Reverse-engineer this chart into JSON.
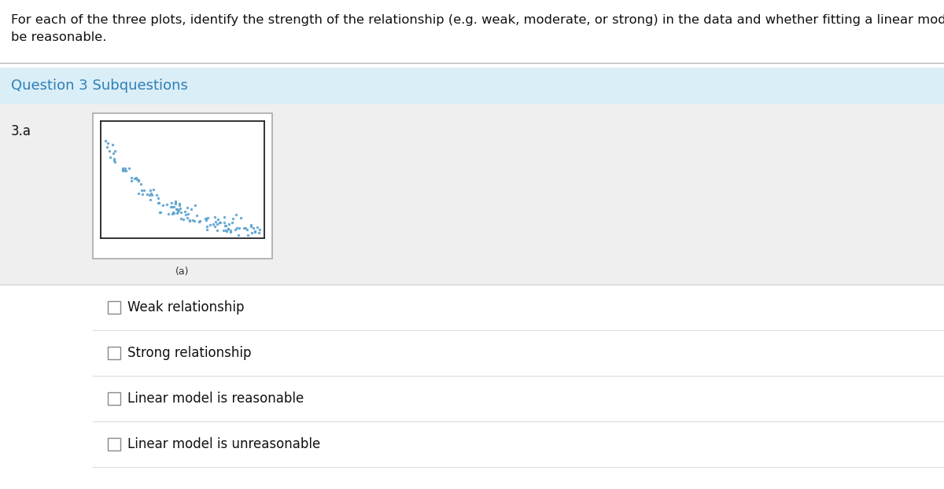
{
  "title_line1": "For each of the three plots, identify the strength of the relationship (e.g. weak, moderate, or strong) in the data and whether fitting a linear model would",
  "title_line2": "be reasonable.",
  "section_title": "Question 3 Subquestions",
  "subquestion_label": "3.a",
  "plot_label": "(a)",
  "scatter_color": "#5ba3d0",
  "dot_size": 6,
  "options": [
    "Weak relationship",
    "Strong relationship",
    "Linear model is reasonable",
    "Linear model is unreasonable"
  ],
  "bg_color": "#efefef",
  "section_bg_top": "#cde4f0",
  "section_bg_bottom": "#daeef8",
  "white_bg": "#ffffff",
  "separator_color": "#c8c8c8",
  "title_color": "#111111",
  "section_color": "#2e7fb5",
  "subq_color": "#111111",
  "option_color": "#111111",
  "title_fontsize": 11.8,
  "section_fontsize": 13,
  "option_fontsize": 12,
  "subq_fontsize": 12
}
